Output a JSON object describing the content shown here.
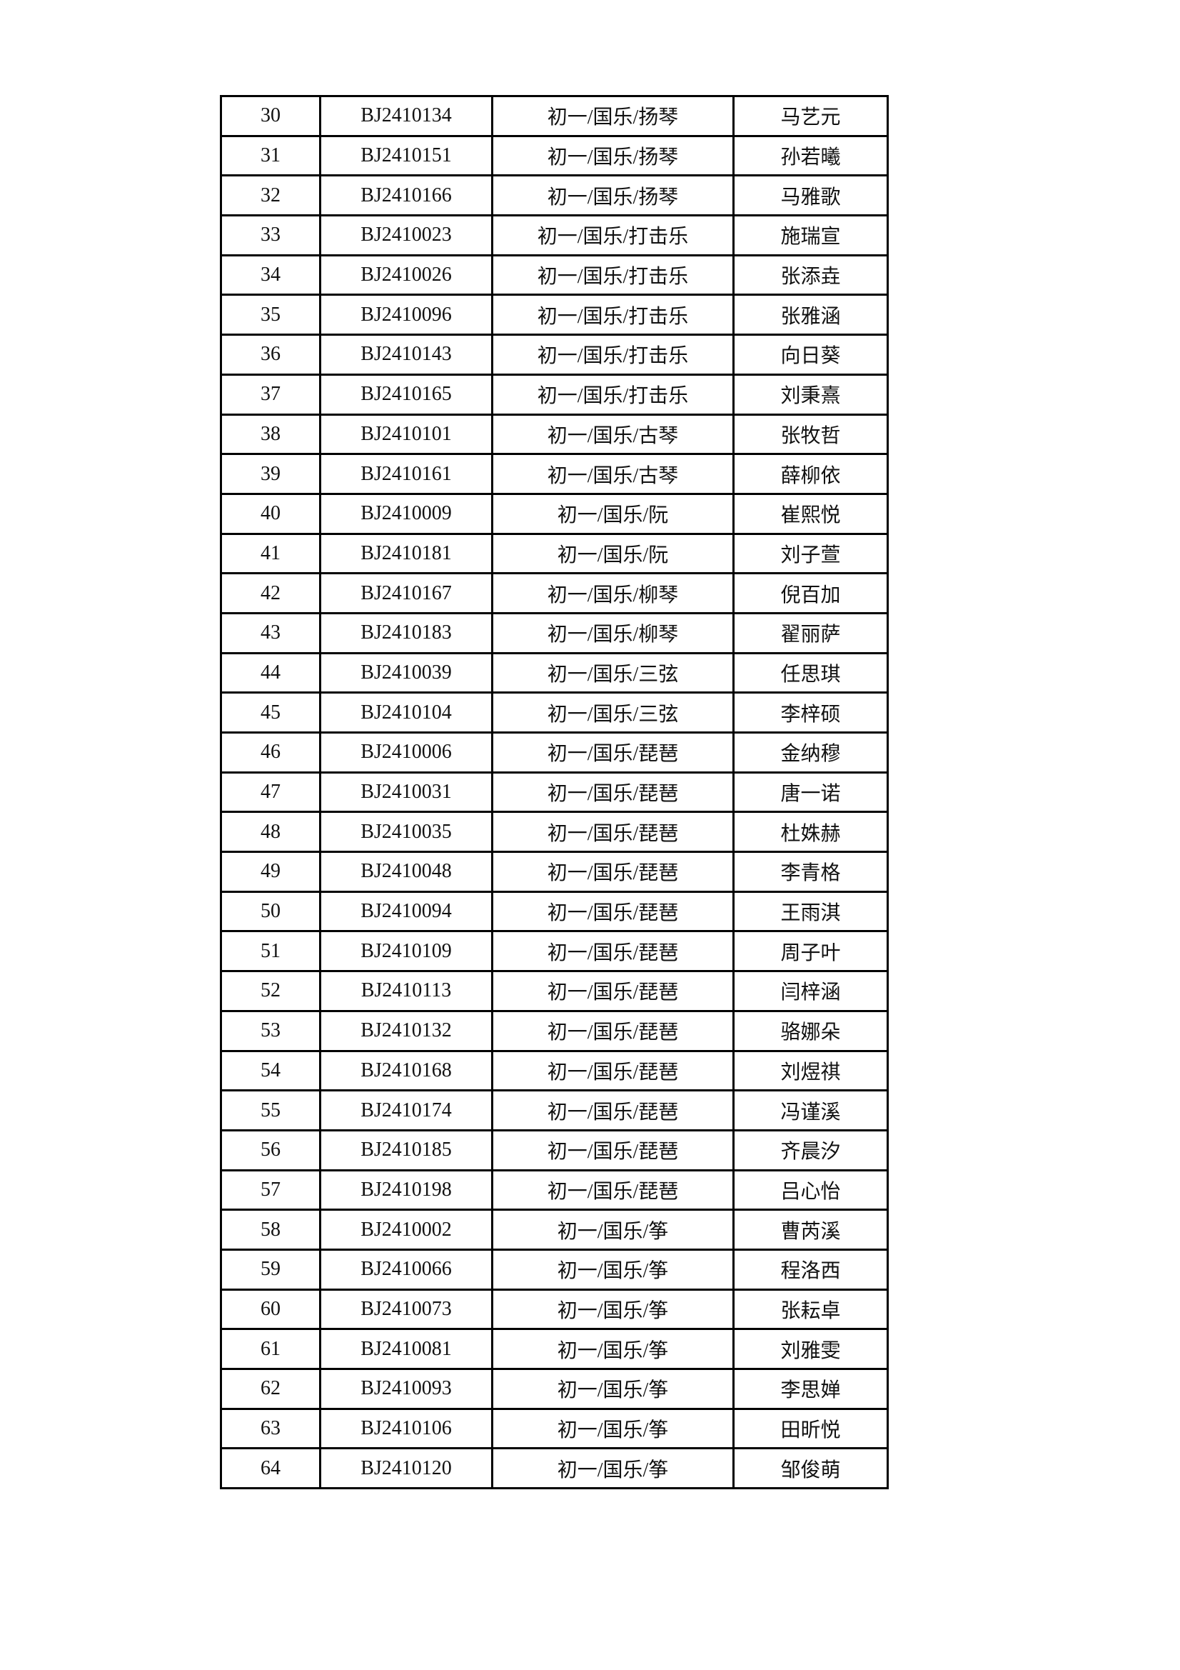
{
  "rows": [
    [
      "30",
      "BJ2410134",
      "初一/国乐/扬琴",
      "马艺元"
    ],
    [
      "31",
      "BJ2410151",
      "初一/国乐/扬琴",
      "孙若曦"
    ],
    [
      "32",
      "BJ2410166",
      "初一/国乐/扬琴",
      "马雅歌"
    ],
    [
      "33",
      "BJ2410023",
      "初一/国乐/打击乐",
      "施瑞宣"
    ],
    [
      "34",
      "BJ2410026",
      "初一/国乐/打击乐",
      "张添垚"
    ],
    [
      "35",
      "BJ2410096",
      "初一/国乐/打击乐",
      "张雅涵"
    ],
    [
      "36",
      "BJ2410143",
      "初一/国乐/打击乐",
      "向日葵"
    ],
    [
      "37",
      "BJ2410165",
      "初一/国乐/打击乐",
      "刘秉熹"
    ],
    [
      "38",
      "BJ2410101",
      "初一/国乐/古琴",
      "张牧哲"
    ],
    [
      "39",
      "BJ2410161",
      "初一/国乐/古琴",
      "薛柳依"
    ],
    [
      "40",
      "BJ2410009",
      "初一/国乐/阮",
      "崔熙悦"
    ],
    [
      "41",
      "BJ2410181",
      "初一/国乐/阮",
      "刘子萱"
    ],
    [
      "42",
      "BJ2410167",
      "初一/国乐/柳琴",
      "倪百加"
    ],
    [
      "43",
      "BJ2410183",
      "初一/国乐/柳琴",
      "翟丽萨"
    ],
    [
      "44",
      "BJ2410039",
      "初一/国乐/三弦",
      "任思琪"
    ],
    [
      "45",
      "BJ2410104",
      "初一/国乐/三弦",
      "李梓硕"
    ],
    [
      "46",
      "BJ2410006",
      "初一/国乐/琵琶",
      "金纳穆"
    ],
    [
      "47",
      "BJ2410031",
      "初一/国乐/琵琶",
      "唐一诺"
    ],
    [
      "48",
      "BJ2410035",
      "初一/国乐/琵琶",
      "杜姝赫"
    ],
    [
      "49",
      "BJ2410048",
      "初一/国乐/琵琶",
      "李青格"
    ],
    [
      "50",
      "BJ2410094",
      "初一/国乐/琵琶",
      "王雨淇"
    ],
    [
      "51",
      "BJ2410109",
      "初一/国乐/琵琶",
      "周子叶"
    ],
    [
      "52",
      "BJ2410113",
      "初一/国乐/琵琶",
      "闫梓涵"
    ],
    [
      "53",
      "BJ2410132",
      "初一/国乐/琵琶",
      "骆娜朵"
    ],
    [
      "54",
      "BJ2410168",
      "初一/国乐/琵琶",
      "刘煜祺"
    ],
    [
      "55",
      "BJ2410174",
      "初一/国乐/琵琶",
      "冯谨溪"
    ],
    [
      "56",
      "BJ2410185",
      "初一/国乐/琵琶",
      "齐晨汐"
    ],
    [
      "57",
      "BJ2410198",
      "初一/国乐/琵琶",
      "吕心怡"
    ],
    [
      "58",
      "BJ2410002",
      "初一/国乐/筝",
      "曹芮溪"
    ],
    [
      "59",
      "BJ2410066",
      "初一/国乐/筝",
      "程洛西"
    ],
    [
      "60",
      "BJ2410073",
      "初一/国乐/筝",
      "张耘卓"
    ],
    [
      "61",
      "BJ2410081",
      "初一/国乐/筝",
      "刘雅雯"
    ],
    [
      "62",
      "BJ2410093",
      "初一/国乐/筝",
      "李思婵"
    ],
    [
      "63",
      "BJ2410106",
      "初一/国乐/筝",
      "田昕悦"
    ],
    [
      "64",
      "BJ2410120",
      "初一/国乐/筝",
      "邹俊萌"
    ]
  ]
}
